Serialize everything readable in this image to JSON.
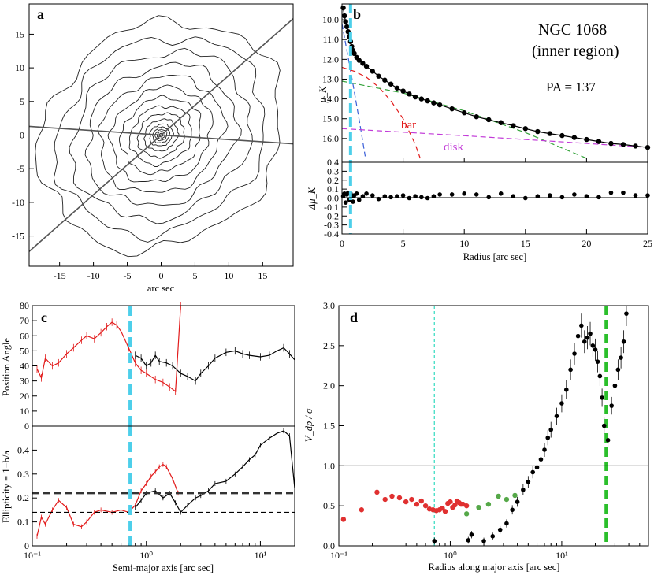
{
  "chart_data": [
    {
      "id": "a",
      "type": "contour",
      "panel_label": "a",
      "xlabel": "arc sec",
      "xlim": [
        -19.5,
        19.5
      ],
      "ylim": [
        -19.5,
        19.5
      ],
      "xticks": [
        -15,
        -10,
        -5,
        0,
        5,
        10,
        15
      ],
      "yticks": [
        -15,
        -10,
        -5,
        0,
        5,
        10,
        15
      ],
      "center": [
        0,
        0
      ],
      "contour_semi_major_axes": [
        0.3,
        0.6,
        0.9,
        1.3,
        1.8,
        2.6,
        3.6,
        4.8,
        6.2,
        7.8,
        9.6,
        11.6,
        13.8,
        16.2,
        18.8
      ],
      "lines": [
        {
          "name": "major-axis",
          "x": [
            -19.5,
            19.5
          ],
          "y": [
            -17.3,
            17.3
          ]
        },
        {
          "name": "minor-axis",
          "x": [
            -19.5,
            19.5
          ],
          "y": [
            1.3,
            -1.3
          ]
        }
      ]
    },
    {
      "id": "b",
      "type": "line",
      "panel_label": "b",
      "title": "NGC 1068",
      "subtitle": "(inner region)",
      "annotation": "PA = 137",
      "xlabel": "Radius [arc sec]",
      "ylabel_top": "μ_K",
      "ylabel_bottom": "Δμ_K",
      "xlim": [
        0,
        25
      ],
      "xticks": [
        0,
        5,
        10,
        15,
        20,
        25
      ],
      "top_ylim": [
        9.2,
        17.2
      ],
      "top_yticks": [
        10.0,
        11.0,
        12.0,
        13.0,
        14.0,
        15.0,
        16.0
      ],
      "bottom_ylim": [
        -0.4,
        0.4
      ],
      "bottom_yticks": [
        -0.4,
        -0.3,
        -0.2,
        -0.1,
        0.0,
        0.1,
        0.2,
        0.3,
        0.4
      ],
      "vline_x": 0.7,
      "vline_color": "#4dcfea",
      "data": {
        "x": [
          0.1,
          0.2,
          0.3,
          0.4,
          0.5,
          0.6,
          0.7,
          0.8,
          0.9,
          1.0,
          1.2,
          1.4,
          1.7,
          2.0,
          2.5,
          3.0,
          3.5,
          4.0,
          4.5,
          5.0,
          5.5,
          6.0,
          6.5,
          7.0,
          7.5,
          8.0,
          9,
          10,
          11,
          12,
          13,
          14,
          15,
          16,
          17,
          18,
          19,
          20,
          21,
          22,
          23,
          24,
          25
        ],
        "mu": [
          9.4,
          9.8,
          10.1,
          10.35,
          10.6,
          10.85,
          11.1,
          11.35,
          11.55,
          11.7,
          11.9,
          12.05,
          12.2,
          12.35,
          12.6,
          12.85,
          13.05,
          13.25,
          13.45,
          13.6,
          13.75,
          13.9,
          14.0,
          14.1,
          14.2,
          14.3,
          14.5,
          14.7,
          14.9,
          15.05,
          15.2,
          15.35,
          15.5,
          15.65,
          15.75,
          15.85,
          15.95,
          16.05,
          16.15,
          16.25,
          16.3,
          16.38,
          16.45
        ],
        "residual": [
          0.02,
          0.05,
          -0.05,
          0.04,
          0.06,
          -0.02,
          0.05,
          0.02,
          -0.04,
          0.03,
          0.05,
          -0.02,
          0.02,
          0.05,
          0.03,
          -0.01,
          0.02,
          0.01,
          0.02,
          0.03,
          0.0,
          0.02,
          0.01,
          0.0,
          0.02,
          0.04,
          0.04,
          0.05,
          0.04,
          0.01,
          0.05,
          0.02,
          0.0,
          0.02,
          0.03,
          0.01,
          0.04,
          0.02,
          0.01,
          0.06,
          0.06,
          0.03,
          0.03
        ]
      },
      "components": [
        {
          "name": "bulge",
          "color": "#3a5fd8",
          "x": [
            0,
            0.5,
            1.0,
            1.5,
            1.9
          ],
          "y": [
            10.2,
            11.9,
            13.6,
            15.4,
            16.9
          ]
        },
        {
          "name": "bar",
          "label": "bar",
          "color": "#e21b1b",
          "x": [
            0,
            1,
            2,
            3,
            4,
            5,
            6,
            6.4
          ],
          "y": [
            12.4,
            12.6,
            12.9,
            13.4,
            14.1,
            15.0,
            16.3,
            17.0
          ]
        },
        {
          "name": "thick-component",
          "color": "#33a33a",
          "x": [
            0,
            5,
            10,
            15,
            20
          ],
          "y": [
            13.1,
            13.7,
            14.6,
            15.7,
            17.0
          ]
        },
        {
          "name": "disk",
          "label": "disk",
          "color": "#c23ad8",
          "x": [
            0,
            5,
            10,
            15,
            20,
            25
          ],
          "y": [
            15.5,
            15.68,
            15.86,
            16.05,
            16.25,
            16.45
          ]
        }
      ]
    },
    {
      "id": "c",
      "type": "line",
      "panel_label": "c",
      "xlabel": "Semi-major axis [arc sec]",
      "ylabel_top": "Position Angle",
      "ylabel_bottom": "Ellipticity = 1−b/a",
      "xscale": "log",
      "xlim": [
        0.1,
        20
      ],
      "xtick_labels": [
        "10⁻¹",
        "10⁰",
        "10¹"
      ],
      "top_ylim": [
        0,
        80
      ],
      "top_yticks": [
        0,
        10,
        20,
        30,
        40,
        50,
        60,
        70,
        80
      ],
      "bottom_ylim": [
        0,
        0.5
      ],
      "bottom_yticks": [
        0,
        0.1,
        0.2,
        0.3,
        0.4
      ],
      "vline_x": 0.72,
      "vline_color": "#4dcfea",
      "hlines": [
        0.22,
        0.14
      ],
      "series": [
        {
          "name": "red-pa",
          "color": "#e21b1b",
          "x": [
            0.11,
            0.12,
            0.13,
            0.15,
            0.17,
            0.2,
            0.23,
            0.27,
            0.3,
            0.35,
            0.4,
            0.45,
            0.5,
            0.55,
            0.6,
            0.7,
            0.8,
            0.9,
            1.0,
            1.2,
            1.4,
            1.6,
            1.8,
            2.0
          ],
          "y": [
            38,
            32,
            45,
            40,
            42,
            48,
            52,
            57,
            60,
            58,
            62,
            66,
            69,
            67,
            63,
            52,
            42,
            37,
            35,
            31,
            29,
            26,
            23,
            80
          ]
        },
        {
          "name": "black-pa",
          "color": "#000000",
          "x": [
            0.8,
            0.9,
            1.0,
            1.1,
            1.2,
            1.3,
            1.5,
            1.7,
            2.0,
            2.3,
            2.7,
            3.0,
            3.5,
            4.0,
            5.0,
            6.0,
            7.0,
            8.0,
            10.0,
            12.0,
            14.0,
            16.0,
            18.0,
            20.0
          ],
          "y": [
            47,
            45,
            40,
            42,
            47,
            43,
            42,
            40,
            35,
            33,
            30,
            35,
            40,
            45,
            49,
            50,
            48,
            47,
            46,
            47,
            50,
            52,
            48,
            44
          ]
        },
        {
          "name": "red-ellipticity",
          "color": "#e21b1b",
          "x": [
            0.11,
            0.12,
            0.13,
            0.15,
            0.17,
            0.2,
            0.23,
            0.27,
            0.3,
            0.35,
            0.4,
            0.5,
            0.6,
            0.7,
            0.8,
            0.9,
            1.0,
            1.1,
            1.2,
            1.3,
            1.4,
            1.5,
            1.7,
            1.9
          ],
          "y": [
            0.04,
            0.12,
            0.09,
            0.15,
            0.19,
            0.16,
            0.09,
            0.08,
            0.1,
            0.14,
            0.15,
            0.14,
            0.15,
            0.14,
            0.17,
            0.23,
            0.26,
            0.29,
            0.31,
            0.33,
            0.34,
            0.33,
            0.28,
            0.22
          ]
        },
        {
          "name": "black-ellipticity",
          "color": "#000000",
          "x": [
            0.8,
            0.9,
            1.0,
            1.2,
            1.4,
            1.6,
            1.8,
            2.0,
            2.3,
            2.7,
            3.0,
            3.5,
            4.0,
            5.0,
            6.0,
            7.0,
            8.0,
            9.0,
            10.0,
            12.0,
            14.0,
            16.0,
            18.0,
            20.0
          ],
          "y": [
            0.16,
            0.19,
            0.22,
            0.23,
            0.2,
            0.22,
            0.18,
            0.14,
            0.17,
            0.2,
            0.21,
            0.23,
            0.26,
            0.27,
            0.3,
            0.33,
            0.36,
            0.38,
            0.42,
            0.45,
            0.47,
            0.48,
            0.46,
            0.24
          ]
        }
      ]
    },
    {
      "id": "d",
      "type": "scatter",
      "panel_label": "d",
      "xlabel": "Radius along major axis [arc sec]",
      "ylabel": "V_dp / σ",
      "xscale": "log",
      "xlim": [
        0.1,
        60
      ],
      "xtick_labels": [
        "10⁻¹",
        "10⁰",
        "10¹"
      ],
      "ylim": [
        0,
        3.0
      ],
      "yticks": [
        0,
        0.5,
        1.0,
        1.5,
        2.0,
        2.5,
        3.0
      ],
      "hline_y": 1.0,
      "vlines": [
        {
          "x": 0.72,
          "color": "#4de0c8",
          "style": "thin-dashed"
        },
        {
          "x": 25,
          "color": "#2bbf2b",
          "style": "thick-dashed"
        }
      ],
      "series": [
        {
          "name": "red-points",
          "color": "#e03030",
          "x": [
            0.11,
            0.16,
            0.22,
            0.26,
            0.3,
            0.35,
            0.4,
            0.45,
            0.5,
            0.55,
            0.6,
            0.65,
            0.7,
            0.75,
            0.8,
            0.85,
            0.9,
            0.95,
            1.0,
            1.05,
            1.1,
            1.15,
            1.2,
            1.25,
            1.3,
            1.4
          ],
          "y": [
            0.33,
            0.45,
            0.67,
            0.58,
            0.62,
            0.6,
            0.55,
            0.58,
            0.52,
            0.56,
            0.5,
            0.46,
            0.45,
            0.44,
            0.45,
            0.47,
            0.43,
            0.53,
            0.55,
            0.48,
            0.51,
            0.56,
            0.54,
            0.52,
            0.52,
            0.5
          ]
        },
        {
          "name": "green-points",
          "color": "#55a848",
          "x": [
            1.4,
            1.8,
            2.2,
            2.7,
            3.2,
            3.8
          ],
          "y": [
            0.4,
            0.48,
            0.52,
            0.62,
            0.58,
            0.63
          ]
        },
        {
          "name": "black-points",
          "color": "#000000",
          "x": [
            0.72,
            1.45,
            1.55,
            2.0,
            2.4,
            2.8,
            3.2,
            3.6,
            4.0,
            4.5,
            5.0,
            5.5,
            6.0,
            6.5,
            7.0,
            7.5,
            8.0,
            9.0,
            10.0,
            11.0,
            12.0,
            13.0,
            14.0,
            15.0,
            16.0,
            17.0,
            18.0,
            19.0,
            20.0,
            21.0,
            22.0,
            23.0,
            24.0,
            26.0,
            28.0,
            30.0,
            32.0,
            34.0,
            36.0,
            38.0
          ],
          "y": [
            0.06,
            0.07,
            0.14,
            0.06,
            0.12,
            0.2,
            0.28,
            0.45,
            0.55,
            0.7,
            0.8,
            0.92,
            0.98,
            1.08,
            1.2,
            1.35,
            1.45,
            1.62,
            1.78,
            1.95,
            2.2,
            2.4,
            2.62,
            2.75,
            2.55,
            2.6,
            2.65,
            2.5,
            2.45,
            2.3,
            2.12,
            1.85,
            1.5,
            1.32,
            1.75,
            2.0,
            2.2,
            2.35,
            2.55,
            2.9
          ]
        }
      ]
    }
  ]
}
